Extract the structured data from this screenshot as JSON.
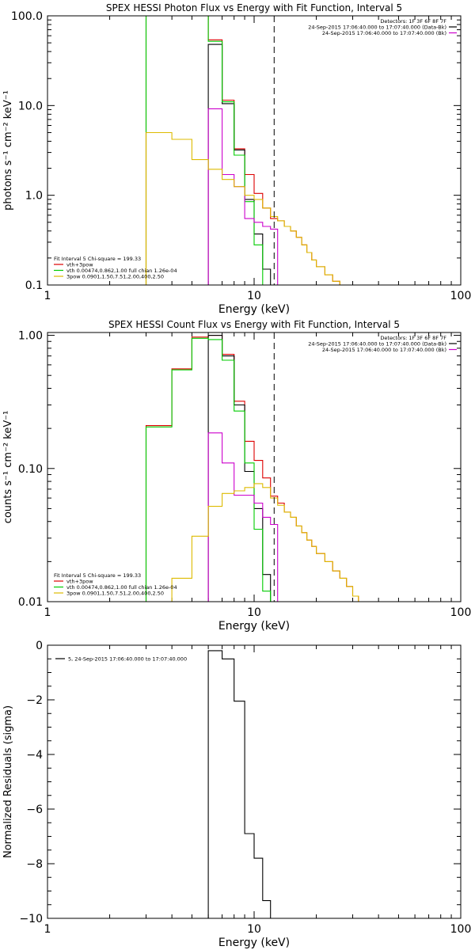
{
  "chart_data": [
    {
      "type": "line",
      "title": "SPEX HESSI Photon Flux vs Energy with Fit Function, Interval 5",
      "xlabel": "Energy (keV)",
      "ylabel": "photons s⁻¹ cm⁻² keV⁻¹",
      "xscale": "log",
      "yscale": "log",
      "xlim": [
        1,
        100
      ],
      "ylim": [
        0.1,
        100
      ],
      "x_ticks": [
        {
          "v": 1,
          "label": "1"
        },
        {
          "v": 10,
          "label": "10"
        },
        {
          "v": 100,
          "label": "100"
        }
      ],
      "y_ticks": [
        {
          "v": 0.1,
          "label": "0.1"
        },
        {
          "v": 1,
          "label": "1.0"
        },
        {
          "v": 10,
          "label": "10.0"
        },
        {
          "v": 100,
          "label": "100.0"
        }
      ],
      "vlines": [
        {
          "x": 12.5,
          "style": "dashed",
          "color": "#000000"
        }
      ],
      "header": [
        "Detectors: 1F 3F 6F 8F 7F",
        "24-Sep-2015 17:06:40.000 to 17:07:40.000 (Data-Bk)",
        "24-Sep-2015 17:06:40.000 to 17:07:40.000 (Bk)"
      ],
      "header_colors": [
        "#000000",
        "#000000",
        "#cc00cc"
      ],
      "fit_legend": [
        "Fit Interval 5   Chi-square = 199.33",
        "vth+3pow",
        "vth 0.00474,0.862,1.00  full chian 1.26e-04",
        "3pow 0.0901,1.50,7.51,2.00,400,2.50"
      ],
      "fit_legend_colors": [
        "#000000",
        "#dd0000",
        "#00cc00",
        "#ddbb00"
      ],
      "series": [
        {
          "name": "vth+3pow",
          "color": "#dd0000",
          "edges": [
            3,
            4,
            5,
            6,
            7,
            8,
            9,
            10,
            11,
            12,
            13,
            14,
            15,
            16,
            17,
            18,
            19,
            20,
            22,
            24,
            26,
            28,
            30
          ],
          "values": [
            100,
            100,
            100,
            54,
            11.5,
            3.3,
            1.7,
            1.05,
            0.72,
            0.55,
            0.52,
            0.45,
            0.4,
            0.34,
            0.28,
            0.23,
            0.19,
            0.16,
            0.13,
            0.11,
            0.09,
            0.07
          ]
        },
        {
          "name": "Data-Bk",
          "color": "#000000",
          "edges": [
            6,
            7,
            8,
            9,
            10,
            11,
            12
          ],
          "values": [
            48,
            10.5,
            3.2,
            0.9,
            0.37,
            0.15
          ]
        },
        {
          "name": "vth",
          "color": "#00cc00",
          "edges": [
            3,
            4,
            5,
            6,
            7,
            8,
            9,
            10,
            11,
            12
          ],
          "values": [
            100,
            100,
            100,
            52,
            11,
            2.8,
            0.85,
            0.28,
            0.08
          ]
        },
        {
          "name": "Bk",
          "color": "#cc00cc",
          "edges": [
            6,
            7,
            8,
            9,
            10,
            11,
            12,
            13
          ],
          "values": [
            9.2,
            1.7,
            1.25,
            0.55,
            0.5,
            0.45,
            0.42
          ]
        },
        {
          "name": "3pow",
          "color": "#ddbb00",
          "edges": [
            3,
            4,
            5,
            6,
            7,
            8,
            9,
            10,
            11,
            12,
            13,
            14,
            15,
            16,
            17,
            18,
            19,
            20,
            22,
            24,
            26,
            28,
            30
          ],
          "values": [
            5.0,
            4.2,
            2.5,
            1.95,
            1.5,
            1.25,
            1.0,
            0.9,
            0.72,
            0.58,
            0.52,
            0.45,
            0.4,
            0.34,
            0.28,
            0.23,
            0.19,
            0.16,
            0.13,
            0.11,
            0.09,
            0.07
          ]
        }
      ]
    },
    {
      "type": "line",
      "title": "SPEX HESSI Count Flux vs Energy with Fit Function, Interval 5",
      "xlabel": "Energy (keV)",
      "ylabel": "counts s⁻¹ cm⁻² keV⁻¹",
      "xscale": "log",
      "yscale": "log",
      "xlim": [
        1,
        100
      ],
      "ylim": [
        0.01,
        1.05
      ],
      "x_ticks": [
        {
          "v": 1,
          "label": "1"
        },
        {
          "v": 10,
          "label": "10"
        },
        {
          "v": 100,
          "label": "100"
        }
      ],
      "y_ticks": [
        {
          "v": 0.01,
          "label": "0.01"
        },
        {
          "v": 0.1,
          "label": "0.10"
        },
        {
          "v": 1,
          "label": "1.00"
        }
      ],
      "vlines": [
        {
          "x": 12.5,
          "style": "dashed",
          "color": "#000000"
        }
      ],
      "header": [
        "Detectors: 1F 3F 6F 8F 7F",
        "24-Sep-2015 17:06:40.000 to 17:07:40.000 (Data-Bk)",
        "24-Sep-2015 17:06:40.000 to 17:07:40.000 (Bk)"
      ],
      "header_colors": [
        "#000000",
        "#000000",
        "#cc00cc"
      ],
      "fit_legend": [
        "Fit Interval 5   Chi-square = 199.33",
        "vth+3pow",
        "vth 0.00474,0.862,1.00  full chian 1.26e-04",
        "3pow 0.0901,1.50,7.51,2.00,400,2.50"
      ],
      "fit_legend_colors": [
        "#000000",
        "#dd0000",
        "#00cc00",
        "#ddbb00"
      ],
      "series": [
        {
          "name": "vth+3pow",
          "color": "#dd0000",
          "edges": [
            3,
            4,
            5,
            6,
            7,
            8,
            9,
            10,
            11,
            12,
            13,
            14,
            15,
            16,
            17,
            18,
            19,
            20,
            22,
            24,
            26,
            28,
            30,
            32,
            35
          ],
          "values": [
            0.21,
            0.56,
            0.97,
            1.0,
            0.72,
            0.32,
            0.16,
            0.115,
            0.085,
            0.062,
            0.055,
            0.047,
            0.043,
            0.037,
            0.033,
            0.029,
            0.026,
            0.023,
            0.02,
            0.017,
            0.015,
            0.013,
            0.011,
            0.01
          ]
        },
        {
          "name": "Data-Bk",
          "color": "#000000",
          "edges": [
            6,
            7,
            8,
            9,
            10,
            11,
            12
          ],
          "values": [
            1.0,
            0.7,
            0.3,
            0.095,
            0.05,
            0.016
          ]
        },
        {
          "name": "vth",
          "color": "#00cc00",
          "edges": [
            3,
            4,
            5,
            6,
            7,
            8,
            9,
            10,
            11,
            12
          ],
          "values": [
            0.205,
            0.55,
            0.95,
            0.93,
            0.65,
            0.27,
            0.11,
            0.035,
            0.012
          ]
        },
        {
          "name": "Bk",
          "color": "#cc00cc",
          "edges": [
            6,
            7,
            8,
            9,
            10,
            11,
            12,
            13
          ],
          "values": [
            0.185,
            0.11,
            0.063,
            0.063,
            0.055,
            0.043,
            0.038
          ]
        },
        {
          "name": "3pow",
          "color": "#ddbb00",
          "edges": [
            4,
            5,
            6,
            7,
            8,
            9,
            10,
            11,
            12,
            13,
            14,
            15,
            16,
            17,
            18,
            19,
            20,
            22,
            24,
            26,
            28,
            30,
            32,
            35
          ],
          "values": [
            0.015,
            0.031,
            0.052,
            0.065,
            0.068,
            0.072,
            0.077,
            0.072,
            0.06,
            0.053,
            0.047,
            0.043,
            0.037,
            0.033,
            0.029,
            0.026,
            0.023,
            0.02,
            0.017,
            0.015,
            0.013,
            0.011,
            0.01
          ]
        }
      ]
    },
    {
      "type": "line",
      "title": "",
      "xlabel": "Energy (keV)",
      "ylabel": "Normalized Residuals (sigma)",
      "xscale": "log",
      "yscale": "linear",
      "xlim": [
        1,
        100
      ],
      "ylim": [
        -10,
        0
      ],
      "x_ticks": [
        {
          "v": 1,
          "label": "1"
        },
        {
          "v": 10,
          "label": "10"
        },
        {
          "v": 100,
          "label": "100"
        }
      ],
      "y_ticks": [
        {
          "v": 0,
          "label": "0"
        },
        {
          "v": -2,
          "label": "−2"
        },
        {
          "v": -4,
          "label": "−4"
        },
        {
          "v": -6,
          "label": "−6"
        },
        {
          "v": -8,
          "label": "−8"
        },
        {
          "v": -10,
          "label": "−10"
        }
      ],
      "legend": "5, 24-Sep-2015 17:06:40.000 to 17:07:40.000",
      "series": [
        {
          "color": "#000000",
          "edges": [
            6,
            7,
            8,
            9,
            10,
            11,
            12
          ],
          "values": [
            -0.2,
            -0.5,
            -2.05,
            -6.9,
            -7.8,
            -9.35
          ]
        }
      ]
    }
  ]
}
